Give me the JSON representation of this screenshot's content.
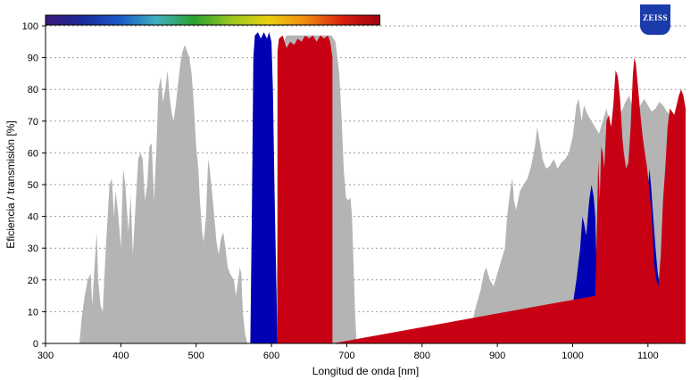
{
  "brand": {
    "logo_text": "ZEISS"
  },
  "chart_data": {
    "type": "area",
    "xlabel": "Longitud de onda [nm]",
    "ylabel": "Eficiencia / transmisión [%]",
    "xlim": [
      300,
      1150
    ],
    "ylim": [
      0,
      100
    ],
    "x_ticks": [
      300,
      400,
      500,
      600,
      700,
      800,
      900,
      1000,
      1100
    ],
    "y_ticks": [
      0,
      10,
      20,
      30,
      40,
      50,
      60,
      70,
      80,
      90,
      100
    ],
    "grid": "horizontal dotted",
    "spectrum_bar": {
      "range_nm": [
        300,
        744
      ],
      "colors": [
        "#3a1a78",
        "#1a2a9a",
        "#1a5ac8",
        "#3fb0c0",
        "#2aa030",
        "#9ac820",
        "#e8d010",
        "#f08a10",
        "#d82010",
        "#a00010"
      ]
    },
    "series": [
      {
        "color": "#b4b4b4",
        "points": [
          [
            345,
            0
          ],
          [
            348,
            8
          ],
          [
            352,
            15
          ],
          [
            356,
            20
          ],
          [
            360,
            22
          ],
          [
            362,
            12
          ],
          [
            365,
            24
          ],
          [
            368,
            35
          ],
          [
            370,
            20
          ],
          [
            373,
            12
          ],
          [
            376,
            10
          ],
          [
            380,
            30
          ],
          [
            385,
            50
          ],
          [
            388,
            52
          ],
          [
            391,
            40
          ],
          [
            393,
            48
          ],
          [
            396,
            42
          ],
          [
            400,
            30
          ],
          [
            403,
            55
          ],
          [
            406,
            50
          ],
          [
            410,
            35
          ],
          [
            413,
            47
          ],
          [
            416,
            28
          ],
          [
            420,
            45
          ],
          [
            423,
            58
          ],
          [
            426,
            60
          ],
          [
            429,
            58
          ],
          [
            432,
            45
          ],
          [
            435,
            50
          ],
          [
            438,
            62
          ],
          [
            441,
            63
          ],
          [
            444,
            45
          ],
          [
            447,
            60
          ],
          [
            450,
            80
          ],
          [
            453,
            84
          ],
          [
            456,
            76
          ],
          [
            459,
            80
          ],
          [
            462,
            86
          ],
          [
            465,
            77
          ],
          [
            468,
            72
          ],
          [
            470,
            70
          ],
          [
            473,
            75
          ],
          [
            476,
            82
          ],
          [
            479,
            88
          ],
          [
            482,
            92
          ],
          [
            485,
            94
          ],
          [
            488,
            92
          ],
          [
            491,
            90
          ],
          [
            494,
            85
          ],
          [
            497,
            75
          ],
          [
            500,
            62
          ],
          [
            503,
            55
          ],
          [
            505,
            45
          ],
          [
            508,
            35
          ],
          [
            510,
            32
          ],
          [
            513,
            40
          ],
          [
            516,
            58
          ],
          [
            518,
            55
          ],
          [
            521,
            48
          ],
          [
            524,
            40
          ],
          [
            527,
            32
          ],
          [
            530,
            28
          ],
          [
            533,
            33
          ],
          [
            536,
            35
          ],
          [
            539,
            30
          ],
          [
            542,
            24
          ],
          [
            545,
            22
          ],
          [
            550,
            20
          ],
          [
            553,
            15
          ],
          [
            556,
            20
          ],
          [
            558,
            24
          ],
          [
            560,
            22
          ],
          [
            562,
            10
          ],
          [
            565,
            3
          ],
          [
            568,
            0
          ],
          [
            600,
            0
          ],
          [
            605,
            0
          ],
          [
            607,
            20
          ],
          [
            609,
            55
          ],
          [
            612,
            75
          ],
          [
            615,
            90
          ],
          [
            618,
            96
          ],
          [
            620,
            97
          ],
          [
            640,
            97
          ],
          [
            660,
            97
          ],
          [
            680,
            97
          ],
          [
            685,
            95
          ],
          [
            690,
            85
          ],
          [
            693,
            72
          ],
          [
            696,
            55
          ],
          [
            699,
            46
          ],
          [
            702,
            45
          ],
          [
            705,
            46
          ],
          [
            707,
            40
          ],
          [
            709,
            25
          ],
          [
            711,
            10
          ],
          [
            713,
            0
          ],
          [
            860,
            0
          ],
          [
            865,
            5
          ],
          [
            872,
            12
          ],
          [
            878,
            17
          ],
          [
            882,
            22
          ],
          [
            885,
            24
          ],
          [
            890,
            20
          ],
          [
            895,
            18
          ],
          [
            900,
            22
          ],
          [
            905,
            26
          ],
          [
            910,
            30
          ],
          [
            913,
            40
          ],
          [
            917,
            48
          ],
          [
            920,
            52
          ],
          [
            922,
            45
          ],
          [
            925,
            42
          ],
          [
            930,
            48
          ],
          [
            935,
            50
          ],
          [
            940,
            52
          ],
          [
            945,
            56
          ],
          [
            950,
            62
          ],
          [
            953,
            68
          ],
          [
            956,
            64
          ],
          [
            960,
            58
          ],
          [
            965,
            55
          ],
          [
            970,
            56
          ],
          [
            975,
            58
          ],
          [
            980,
            55
          ],
          [
            985,
            57
          ],
          [
            990,
            58
          ],
          [
            995,
            60
          ],
          [
            1000,
            65
          ],
          [
            1005,
            75
          ],
          [
            1008,
            77
          ],
          [
            1012,
            70
          ],
          [
            1015,
            75
          ],
          [
            1020,
            72
          ],
          [
            1025,
            70
          ],
          [
            1030,
            68
          ],
          [
            1035,
            66
          ],
          [
            1040,
            70
          ],
          [
            1045,
            74
          ],
          [
            1050,
            68
          ],
          [
            1055,
            72
          ],
          [
            1060,
            75
          ],
          [
            1065,
            73
          ],
          [
            1070,
            76
          ],
          [
            1075,
            78
          ],
          [
            1080,
            74
          ],
          [
            1085,
            72
          ],
          [
            1090,
            75
          ],
          [
            1095,
            77
          ],
          [
            1100,
            75
          ],
          [
            1105,
            73
          ],
          [
            1110,
            74
          ],
          [
            1115,
            76
          ],
          [
            1120,
            75
          ],
          [
            1125,
            73
          ],
          [
            1130,
            72
          ],
          [
            1135,
            70
          ],
          [
            1140,
            72
          ],
          [
            1145,
            70
          ],
          [
            1150,
            68
          ]
        ]
      },
      {
        "color": "#0000b4",
        "points": [
          [
            572,
            0
          ],
          [
            574,
            40
          ],
          [
            576,
            90
          ],
          [
            578,
            97
          ],
          [
            582,
            98
          ],
          [
            586,
            96
          ],
          [
            590,
            98
          ],
          [
            594,
            96
          ],
          [
            597,
            98
          ],
          [
            600,
            95
          ],
          [
            602,
            80
          ],
          [
            604,
            50
          ],
          [
            606,
            25
          ],
          [
            608,
            0
          ],
          [
            960,
            0
          ],
          [
            970,
            1
          ],
          [
            980,
            2
          ],
          [
            990,
            5
          ],
          [
            995,
            8
          ],
          [
            1000,
            12
          ],
          [
            1005,
            20
          ],
          [
            1010,
            30
          ],
          [
            1013,
            40
          ],
          [
            1015,
            38
          ],
          [
            1018,
            34
          ],
          [
            1022,
            45
          ],
          [
            1025,
            50
          ],
          [
            1028,
            46
          ],
          [
            1030,
            40
          ],
          [
            1032,
            22
          ],
          [
            1035,
            15
          ],
          [
            1038,
            25
          ],
          [
            1042,
            38
          ],
          [
            1045,
            50
          ],
          [
            1048,
            56
          ],
          [
            1051,
            45
          ],
          [
            1054,
            40
          ],
          [
            1057,
            48
          ],
          [
            1060,
            55
          ],
          [
            1063,
            50
          ],
          [
            1066,
            40
          ],
          [
            1068,
            30
          ],
          [
            1071,
            26
          ],
          [
            1074,
            40
          ],
          [
            1077,
            60
          ],
          [
            1080,
            75
          ],
          [
            1082,
            85
          ],
          [
            1084,
            80
          ],
          [
            1086,
            65
          ],
          [
            1088,
            50
          ],
          [
            1090,
            45
          ],
          [
            1093,
            30
          ],
          [
            1096,
            25
          ],
          [
            1099,
            45
          ],
          [
            1102,
            55
          ],
          [
            1104,
            50
          ],
          [
            1107,
            40
          ],
          [
            1110,
            30
          ],
          [
            1113,
            22
          ],
          [
            1116,
            18
          ],
          [
            1119,
            25
          ],
          [
            1122,
            35
          ],
          [
            1125,
            45
          ],
          [
            1128,
            55
          ],
          [
            1131,
            65
          ],
          [
            1134,
            70
          ],
          [
            1137,
            72
          ],
          [
            1140,
            70
          ],
          [
            1143,
            68
          ],
          [
            1146,
            66
          ],
          [
            1150,
            65
          ]
        ]
      },
      {
        "color": "#c80014",
        "points": [
          [
            608,
            0
          ],
          [
            608,
            92
          ],
          [
            610,
            96
          ],
          [
            615,
            97
          ],
          [
            620,
            93
          ],
          [
            625,
            95
          ],
          [
            630,
            94
          ],
          [
            635,
            96
          ],
          [
            640,
            95
          ],
          [
            645,
            97
          ],
          [
            650,
            96
          ],
          [
            655,
            97
          ],
          [
            660,
            95
          ],
          [
            665,
            97
          ],
          [
            670,
            96
          ],
          [
            675,
            97
          ],
          [
            678,
            95
          ],
          [
            681,
            90
          ],
          [
            681,
            0
          ],
          [
            1030,
            15
          ],
          [
            1032,
            35
          ],
          [
            1034,
            58
          ],
          [
            1036,
            45
          ],
          [
            1038,
            62
          ],
          [
            1040,
            60
          ],
          [
            1042,
            55
          ],
          [
            1045,
            70
          ],
          [
            1048,
            72
          ],
          [
            1051,
            68
          ],
          [
            1054,
            75
          ],
          [
            1057,
            86
          ],
          [
            1060,
            84
          ],
          [
            1063,
            77
          ],
          [
            1066,
            65
          ],
          [
            1068,
            60
          ],
          [
            1071,
            55
          ],
          [
            1074,
            57
          ],
          [
            1077,
            68
          ],
          [
            1080,
            85
          ],
          [
            1082,
            90
          ],
          [
            1084,
            88
          ],
          [
            1087,
            80
          ],
          [
            1090,
            72
          ],
          [
            1093,
            65
          ],
          [
            1096,
            60
          ],
          [
            1099,
            55
          ],
          [
            1102,
            48
          ],
          [
            1105,
            40
          ],
          [
            1108,
            25
          ],
          [
            1111,
            20
          ],
          [
            1114,
            18
          ],
          [
            1117,
            28
          ],
          [
            1120,
            45
          ],
          [
            1123,
            55
          ],
          [
            1126,
            68
          ],
          [
            1129,
            74
          ],
          [
            1132,
            73
          ],
          [
            1135,
            72
          ],
          [
            1138,
            75
          ],
          [
            1141,
            78
          ],
          [
            1144,
            80
          ],
          [
            1147,
            78
          ],
          [
            1150,
            74
          ]
        ]
      }
    ]
  }
}
